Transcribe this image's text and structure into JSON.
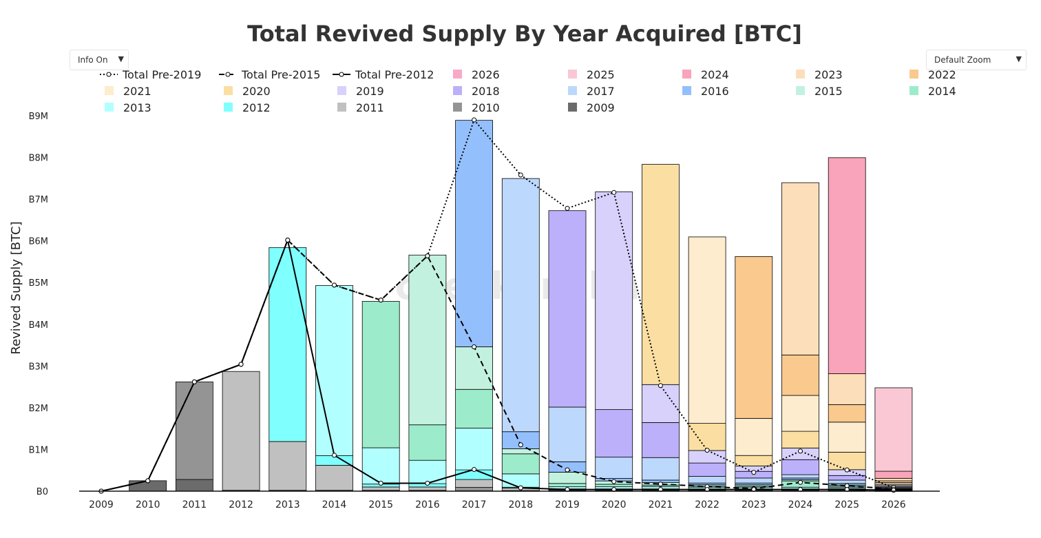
{
  "chart_data": {
    "type": "bar",
    "stacked": true,
    "title": "Total Revived Supply By Year Acquired [BTC]",
    "xlabel": "",
    "ylabel": "Revived Supply [BTC]",
    "ylim": [
      0,
      9000000
    ],
    "ytick_values": [
      0,
      1000000,
      2000000,
      3000000,
      4000000,
      5000000,
      6000000,
      7000000,
      8000000,
      9000000
    ],
    "ytick_labels": [
      "B0",
      "B1M",
      "B2M",
      "B3M",
      "B4M",
      "B5M",
      "B6M",
      "B7M",
      "B8M",
      "B9M"
    ],
    "categories": [
      "2009",
      "2010",
      "2011",
      "2012",
      "2013",
      "2014",
      "2015",
      "2016",
      "2017",
      "2018",
      "2019",
      "2020",
      "2021",
      "2022",
      "2023",
      "2024",
      "2025",
      "2026"
    ],
    "watermark": "checkonchain",
    "legend_position": "top",
    "series": [
      {
        "name": "2009",
        "color": "#6b6b6b",
        "values": [
          0,
          250000,
          280000,
          10000,
          10000,
          10000,
          10000,
          10000,
          10000,
          5000,
          5000,
          5000,
          5000,
          5000,
          5000,
          5000,
          5000,
          3000
        ]
      },
      {
        "name": "2010",
        "color": "#949494",
        "values": [
          0,
          0,
          2340000,
          10000,
          10000,
          10000,
          10000,
          10000,
          80000,
          10000,
          10000,
          10000,
          10000,
          10000,
          10000,
          10000,
          10000,
          5000
        ]
      },
      {
        "name": "2011",
        "color": "#c0c0c0",
        "values": [
          0,
          0,
          0,
          2850000,
          1170000,
          600000,
          80000,
          80000,
          190000,
          60000,
          20000,
          20000,
          20000,
          20000,
          20000,
          20000,
          20000,
          10000
        ]
      },
      {
        "name": "2012",
        "color": "#80ffff",
        "values": [
          0,
          0,
          0,
          0,
          4650000,
          230000,
          70000,
          80000,
          230000,
          20000,
          20000,
          20000,
          20000,
          20000,
          20000,
          20000,
          20000,
          10000
        ]
      },
      {
        "name": "2013",
        "color": "#b2ffff",
        "values": [
          0,
          0,
          0,
          0,
          0,
          4080000,
          870000,
          560000,
          1000000,
          320000,
          50000,
          50000,
          50000,
          40000,
          40000,
          40000,
          30000,
          10000
        ]
      },
      {
        "name": "2014",
        "color": "#9ceccc",
        "values": [
          0,
          0,
          0,
          0,
          0,
          0,
          3510000,
          850000,
          930000,
          480000,
          80000,
          60000,
          40000,
          30000,
          30000,
          150000,
          30000,
          10000
        ]
      },
      {
        "name": "2015",
        "color": "#c2f2df",
        "values": [
          0,
          0,
          0,
          0,
          0,
          0,
          0,
          4070000,
          1020000,
          120000,
          270000,
          80000,
          60000,
          30000,
          30000,
          30000,
          30000,
          10000
        ]
      },
      {
        "name": "2016",
        "color": "#94bffd",
        "values": [
          0,
          0,
          0,
          0,
          0,
          0,
          0,
          0,
          5430000,
          410000,
          250000,
          60000,
          60000,
          40000,
          40000,
          40000,
          40000,
          10000
        ]
      },
      {
        "name": "2017",
        "color": "#bcd8fc",
        "values": [
          0,
          0,
          0,
          0,
          0,
          0,
          0,
          0,
          0,
          6070000,
          1310000,
          510000,
          540000,
          160000,
          120000,
          80000,
          80000,
          20000
        ]
      },
      {
        "name": "2018",
        "color": "#bdb0fa",
        "values": [
          0,
          0,
          0,
          0,
          0,
          0,
          0,
          0,
          0,
          0,
          4710000,
          1140000,
          840000,
          320000,
          160000,
          360000,
          110000,
          20000
        ]
      },
      {
        "name": "2019",
        "color": "#d7d1fc",
        "values": [
          0,
          0,
          0,
          0,
          0,
          0,
          0,
          0,
          0,
          0,
          0,
          5220000,
          910000,
          300000,
          130000,
          280000,
          140000,
          30000
        ]
      },
      {
        "name": "2020",
        "color": "#fbdfa2",
        "values": [
          0,
          0,
          0,
          0,
          0,
          0,
          0,
          0,
          0,
          0,
          0,
          0,
          5280000,
          650000,
          250000,
          400000,
          420000,
          30000
        ]
      },
      {
        "name": "2021",
        "color": "#fdeccd",
        "values": [
          0,
          0,
          0,
          0,
          0,
          0,
          0,
          0,
          0,
          0,
          0,
          0,
          0,
          4470000,
          890000,
          860000,
          720000,
          40000
        ]
      },
      {
        "name": "2022",
        "color": "#f9c98e",
        "values": [
          0,
          0,
          0,
          0,
          0,
          0,
          0,
          0,
          0,
          0,
          0,
          0,
          0,
          0,
          3880000,
          970000,
          420000,
          40000
        ]
      },
      {
        "name": "2023",
        "color": "#fcdfba",
        "values": [
          0,
          0,
          0,
          0,
          0,
          0,
          0,
          0,
          0,
          0,
          0,
          0,
          0,
          0,
          0,
          4130000,
          740000,
          60000
        ]
      },
      {
        "name": "2024",
        "color": "#f9a4ba",
        "values": [
          0,
          0,
          0,
          0,
          0,
          0,
          0,
          0,
          0,
          0,
          0,
          0,
          0,
          0,
          0,
          0,
          5180000,
          170000
        ]
      },
      {
        "name": "2025",
        "color": "#fac8d5",
        "values": [
          0,
          0,
          0,
          0,
          0,
          0,
          0,
          0,
          0,
          0,
          0,
          0,
          0,
          0,
          0,
          0,
          0,
          2000000
        ]
      },
      {
        "name": "2026",
        "color": "#f9a8c6",
        "values": [
          0,
          0,
          0,
          0,
          0,
          0,
          0,
          0,
          0,
          0,
          0,
          0,
          0,
          0,
          0,
          0,
          0,
          0
        ]
      }
    ],
    "lines": [
      {
        "name": "Total Pre-2019",
        "dash": "dot",
        "color": "#000000",
        "values": [
          0,
          250000,
          2620000,
          3040000,
          6020000,
          4940000,
          4580000,
          5640000,
          8900000,
          7580000,
          6780000,
          7160000,
          2530000,
          980000,
          450000,
          960000,
          510000,
          90000
        ]
      },
      {
        "name": "Total Pre-2015",
        "dash": "dash",
        "color": "#000000",
        "values": [
          0,
          250000,
          2620000,
          3040000,
          6020000,
          4940000,
          4580000,
          5640000,
          3460000,
          1110000,
          510000,
          230000,
          170000,
          110000,
          60000,
          210000,
          130000,
          50000
        ]
      },
      {
        "name": "Total Pre-2012",
        "dash": "solid",
        "color": "#000000",
        "values": [
          0,
          250000,
          2620000,
          3040000,
          6020000,
          860000,
          190000,
          190000,
          520000,
          80000,
          40000,
          40000,
          40000,
          40000,
          40000,
          40000,
          40000,
          20000
        ]
      }
    ]
  },
  "controls": {
    "info_label": "Info On",
    "zoom_label": "Default Zoom",
    "arrow": "▼"
  }
}
